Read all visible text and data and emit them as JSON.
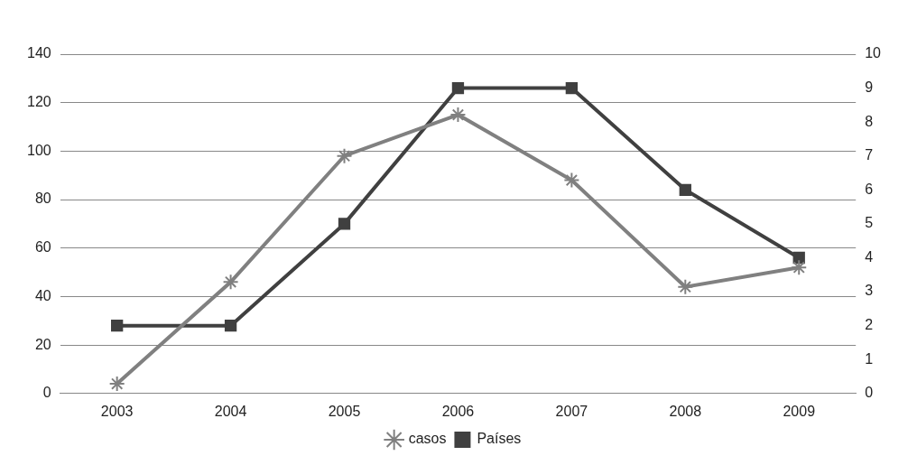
{
  "chart_data": {
    "type": "line",
    "categories": [
      "2003",
      "2004",
      "2005",
      "2006",
      "2007",
      "2008",
      "2009"
    ],
    "series": [
      {
        "name": "casos",
        "color": "#808080",
        "marker": "cross",
        "values": [
          4,
          46,
          98,
          115,
          88,
          44,
          52
        ]
      },
      {
        "name": "Países",
        "color": "#404040",
        "marker": "square",
        "axis": "y2",
        "values": [
          2,
          2,
          5,
          9,
          9,
          6,
          4
        ]
      }
    ],
    "ylim": [
      0,
      140
    ],
    "yticks": [
      0,
      20,
      40,
      60,
      80,
      100,
      120,
      140
    ],
    "y2lim": [
      0,
      10
    ],
    "y2ticks": [
      0,
      1,
      2,
      3,
      4,
      5,
      6,
      7,
      8,
      9,
      10
    ],
    "grid": "y",
    "legend": "bottom",
    "line_style": "solid"
  }
}
